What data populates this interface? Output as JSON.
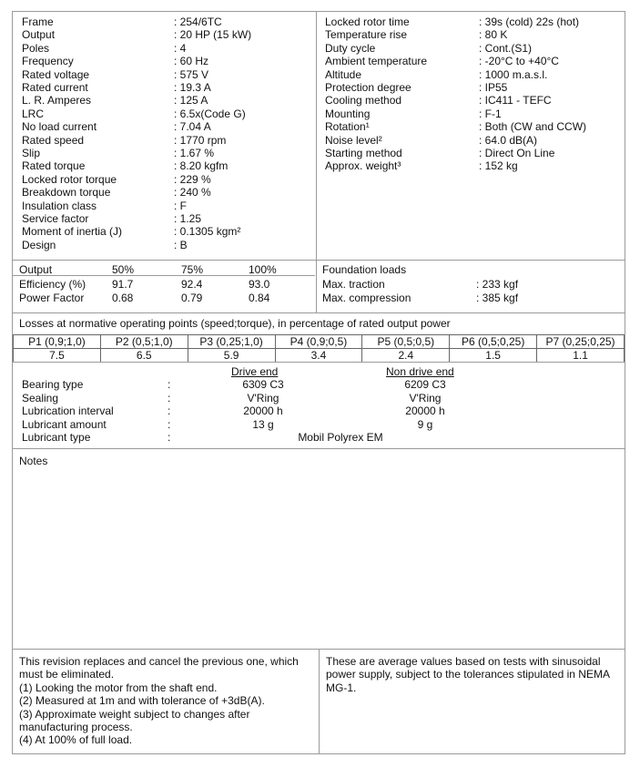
{
  "general_left": [
    [
      "Frame",
      "254/6TC"
    ],
    [
      "Output",
      "20 HP (15 kW)"
    ],
    [
      "Poles",
      "4"
    ],
    [
      "Frequency",
      "60 Hz"
    ],
    [
      "Rated voltage",
      "575 V"
    ],
    [
      "Rated current",
      "19.3 A"
    ],
    [
      "L. R. Amperes",
      "125 A"
    ],
    [
      "LRC",
      "6.5x(Code G)"
    ],
    [
      "No load current",
      "7.04 A"
    ],
    [
      "Rated speed",
      "1770 rpm"
    ],
    [
      "Slip",
      "1.67 %"
    ],
    [
      "Rated torque",
      "8.20 kgfm"
    ],
    [
      "Locked rotor torque",
      "229 %"
    ],
    [
      "Breakdown torque",
      "240 %"
    ],
    [
      "Insulation class",
      "F"
    ],
    [
      "Service factor",
      "1.25"
    ],
    [
      "Moment of inertia (J)",
      "0.1305 kgm²"
    ],
    [
      "Design",
      "B"
    ]
  ],
  "general_right": [
    [
      "Locked rotor time",
      "39s (cold) 22s (hot)"
    ],
    [
      "Temperature rise",
      "80 K"
    ],
    [
      "Duty cycle",
      "Cont.(S1)"
    ],
    [
      "Ambient temperature",
      "-20°C to +40°C"
    ],
    [
      "Altitude",
      "1000 m.a.s.l."
    ],
    [
      "Protection degree",
      "IP55"
    ],
    [
      "Cooling method",
      "IC411 - TEFC"
    ],
    [
      "Mounting",
      "F-1"
    ],
    [
      "Rotation¹",
      "Both (CW and CCW)"
    ],
    [
      "Noise level²",
      "64.0 dB(A)"
    ],
    [
      "Starting method",
      "Direct On Line"
    ],
    [
      "Approx. weight³",
      "152 kg"
    ]
  ],
  "performance": {
    "header": [
      "Output",
      "50%",
      "75%",
      "100%"
    ],
    "rows": [
      [
        "Efficiency (%)",
        "91.7",
        "92.4",
        "93.0"
      ],
      [
        "Power Factor",
        "0.68",
        "0.79",
        "0.84"
      ]
    ]
  },
  "foundation": {
    "title": "Foundation loads",
    "rows": [
      [
        "Max. traction",
        "233 kgf"
      ],
      [
        "Max. compression",
        "385 kgf"
      ]
    ]
  },
  "losses": {
    "title": "Losses at normative operating points (speed;torque), in percentage of rated output power",
    "points": [
      "P1 (0,9;1,0)",
      "P2 (0,5;1,0)",
      "P3 (0,25;1,0)",
      "P4 (0,9;0,5)",
      "P5 (0,5;0,5)",
      "P6 (0,5;0,25)",
      "P7 (0,25;0,25)"
    ],
    "values": [
      "7.5",
      "6.5",
      "5.9",
      "3.4",
      "2.4",
      "1.5",
      "1.1"
    ]
  },
  "bearings": {
    "drive_end": "Drive end",
    "non_drive_end": "Non drive end",
    "rows": [
      [
        "Bearing type",
        "6309 C3",
        "6209 C3"
      ],
      [
        "Sealing",
        "V'Ring",
        "V'Ring"
      ],
      [
        "Lubrication interval",
        "20000 h",
        "20000 h"
      ],
      [
        "Lubricant amount",
        "13 g",
        "9 g"
      ]
    ],
    "lubricant_type_label": "Lubricant type",
    "lubricant_type": "Mobil Polyrex EM"
  },
  "notes": {
    "title": "Notes"
  },
  "footer": {
    "left": [
      "This revision replaces and cancel the previous one, which",
      "must be eliminated.",
      "(1) Looking the motor from the shaft end.",
      "(2) Measured at 1m and with tolerance of +3dB(A).",
      "(3) Approximate weight subject to changes after",
      "manufacturing process.",
      "(4) At 100% of full load."
    ],
    "right": [
      "These are average values based on tests with sinusoidal",
      "power supply, subject to the tolerances stipulated in NEMA",
      "MG-1."
    ]
  }
}
